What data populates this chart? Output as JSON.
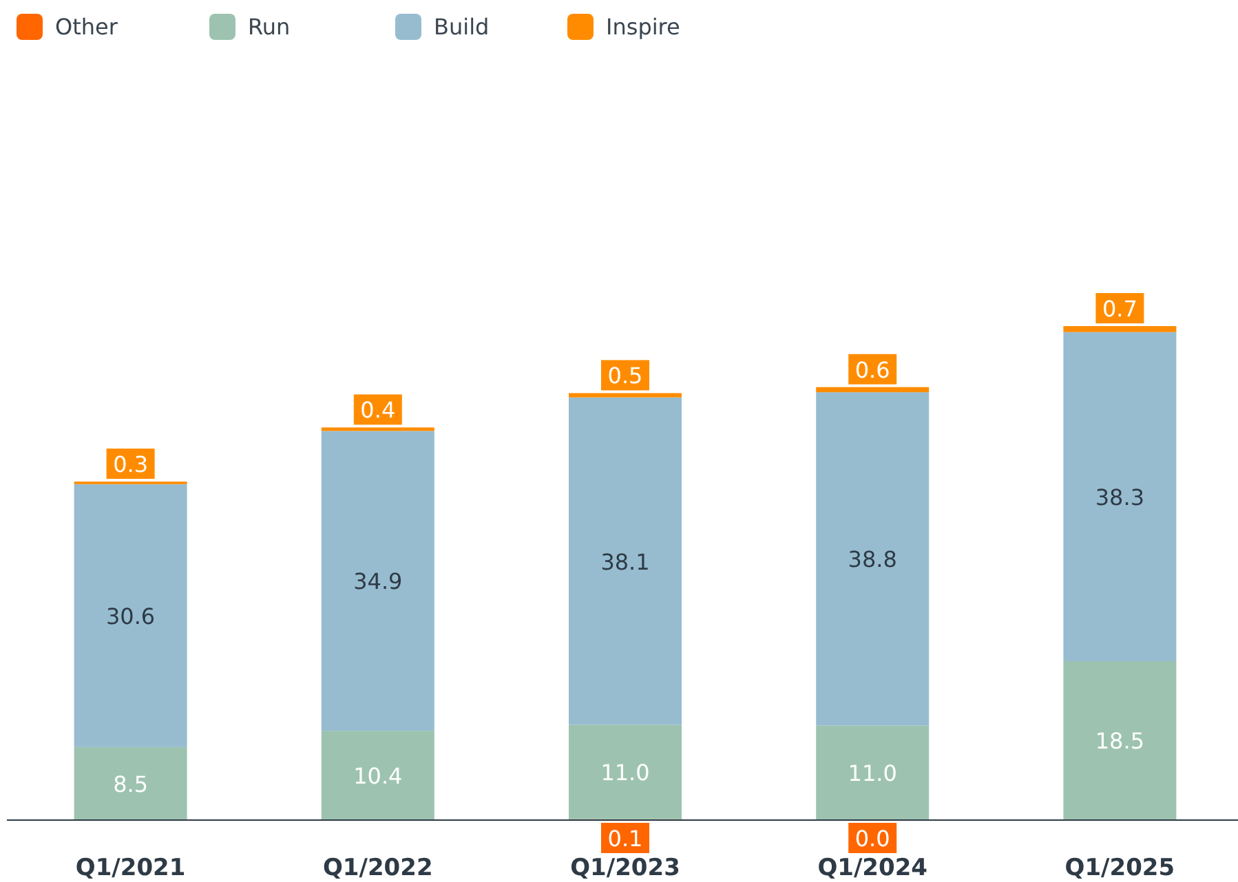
{
  "chart_data": {
    "type": "bar",
    "stacked": true,
    "legend": "top left",
    "categories": [
      "Q1/2021",
      "Q1/2022",
      "Q1/2023",
      "Q1/2024",
      "Q1/2025"
    ],
    "series": [
      {
        "name": "Other",
        "color": "#ff6600",
        "values": [
          null,
          null,
          0.1,
          0.0,
          null
        ],
        "value_labels": [
          null,
          null,
          "0.1",
          "0.0",
          null
        ]
      },
      {
        "name": "Run",
        "color": "#9dc3b0",
        "values": [
          8.5,
          10.4,
          11.0,
          11.0,
          18.5
        ],
        "value_labels": [
          "8.5",
          "10.4",
          "11.0",
          "11.0",
          "18.5"
        ]
      },
      {
        "name": "Build",
        "color": "#97bcd0",
        "values": [
          30.6,
          34.9,
          38.1,
          38.8,
          38.3
        ],
        "value_labels": [
          "30.6",
          "34.9",
          "38.1",
          "38.8",
          "38.3"
        ]
      },
      {
        "name": "Inspire",
        "color": "#ff8c00",
        "values": [
          0.3,
          0.4,
          0.5,
          0.6,
          0.7
        ],
        "value_labels": [
          "0.3",
          "0.4",
          "0.5",
          "0.6",
          "0.7"
        ]
      }
    ]
  }
}
